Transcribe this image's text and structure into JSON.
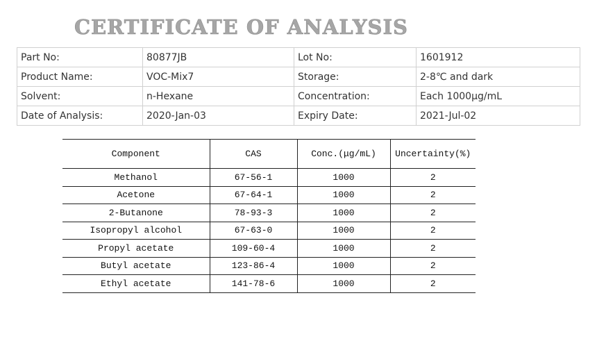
{
  "header": {
    "title": "CERTIFICATE OF ANALYSIS"
  },
  "info_table": {
    "rows": [
      [
        "Part No:",
        "80877JB",
        "Lot No:",
        "1601912"
      ],
      [
        "Product Name:",
        "VOC-Mix7",
        "Storage:",
        "2-8℃ and dark"
      ],
      [
        "Solvent:",
        "n-Hexane",
        "Concentration:",
        "Each 1000μg/mL"
      ],
      [
        "Date of Analysis:",
        "2020-Jan-03",
        "Expiry Date:",
        "2021-Jul-02"
      ]
    ]
  },
  "component_table": {
    "columns": [
      "Component",
      "CAS",
      "Conc.(μg/mL)",
      "Uncertainty(%)"
    ],
    "rows": [
      [
        "Methanol",
        "67-56-1",
        "1000",
        "2"
      ],
      [
        "Acetone",
        "67-64-1",
        "1000",
        "2"
      ],
      [
        "2-Butanone",
        "78-93-3",
        "1000",
        "2"
      ],
      [
        "Isopropyl alcohol",
        "67-63-0",
        "1000",
        "2"
      ],
      [
        "Propyl acetate",
        "109-60-4",
        "1000",
        "2"
      ],
      [
        "Butyl acetate",
        "123-86-4",
        "1000",
        "2"
      ],
      [
        "Ethyl acetate",
        "141-78-6",
        "1000",
        "2"
      ]
    ]
  }
}
